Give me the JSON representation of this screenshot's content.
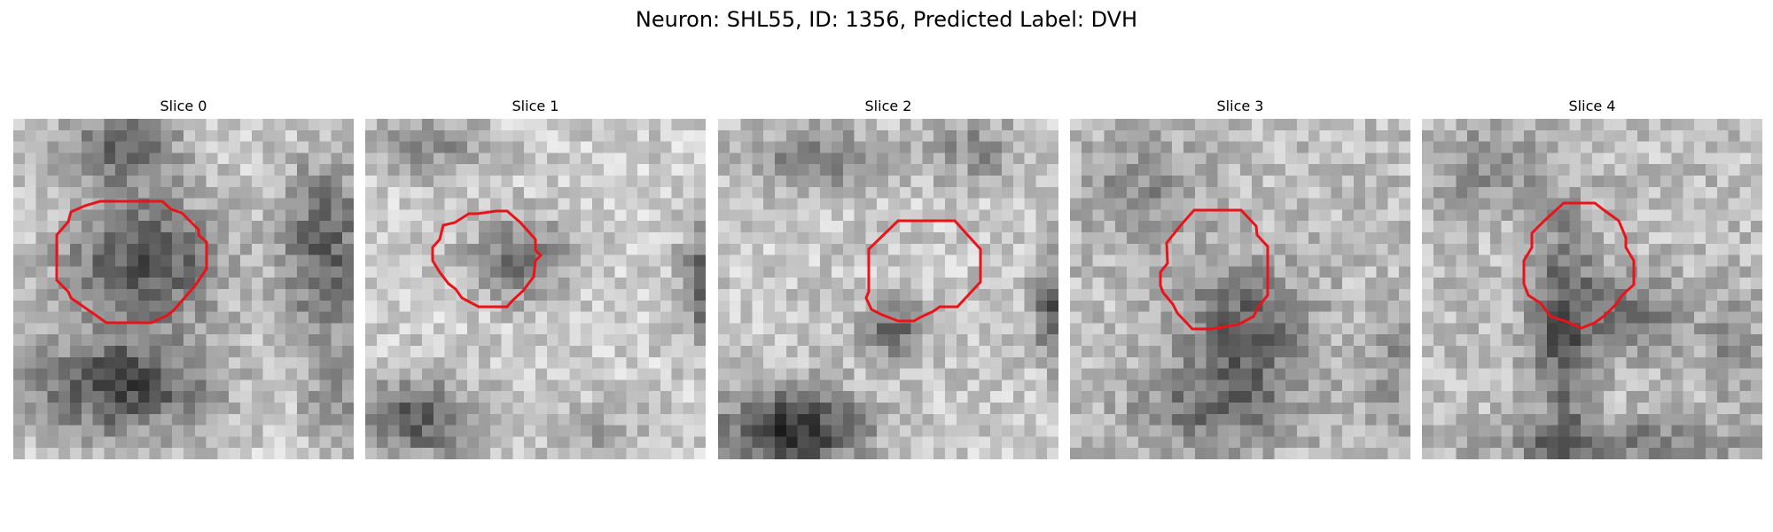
{
  "title": "Neuron: SHL55, ID: 1356, Predicted Label: DVH",
  "colors": {
    "contour": "#e8141a",
    "background": "#ffffff"
  },
  "panels": [
    {
      "label": "Slice 0"
    },
    {
      "label": "Slice 1"
    },
    {
      "label": "Slice 2"
    },
    {
      "label": "Slice 3"
    },
    {
      "label": "Slice 4"
    }
  ]
}
